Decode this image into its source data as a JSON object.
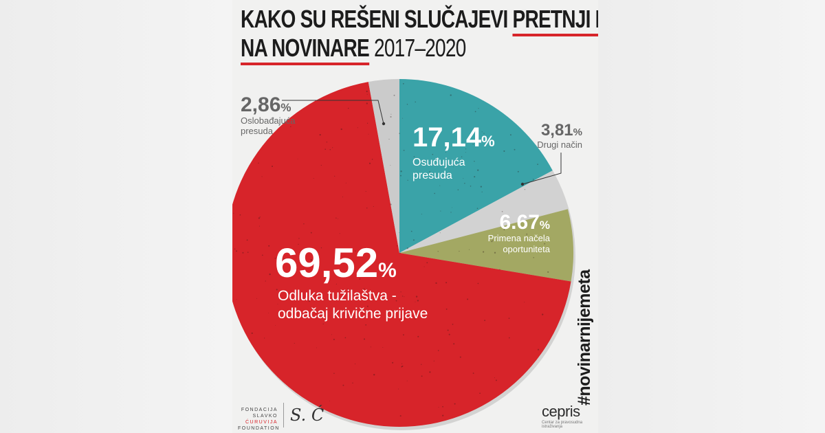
{
  "chart_data": {
    "type": "pie",
    "title_parts": [
      "KAKO SU REŠENI SLUČAJEVI ",
      "PRETNJI I NAPADA",
      "NA NOVINARE",
      " 2017–2020"
    ],
    "slices": [
      {
        "value": "17,14",
        "unit": "%",
        "label_lines": [
          "Osuđujuća",
          "presuda"
        ],
        "numeric": 17.14,
        "color": "#3aa3a8"
      },
      {
        "value": "3,81",
        "unit": "%",
        "label_lines": [
          "Drugi način"
        ],
        "numeric": 3.81,
        "color": "#d2d2d2"
      },
      {
        "value": "6.67",
        "unit": "%",
        "label_lines": [
          "Primena načela",
          "oportuniteta"
        ],
        "numeric": 6.67,
        "color": "#a3a863"
      },
      {
        "value": "69,52",
        "unit": "%",
        "label_lines": [
          "Odluka tužilaštva -",
          "odbačaj krivične prijave"
        ],
        "numeric": 69.52,
        "color": "#d7242a"
      },
      {
        "value": "2,86",
        "unit": "%",
        "label_lines": [
          "Oslobađajuća",
          "presuda"
        ],
        "numeric": 2.86,
        "color": "#cbcbcb"
      }
    ]
  },
  "hashtag": "#novinarnijemeta",
  "footer": {
    "foundation_lines": [
      "FONDACIJA",
      "SLAVKO",
      "ĆURUVIJA",
      "FOUNDATION"
    ],
    "signature": "S. Ć",
    "partner_logo": "cepris",
    "partner_sub": "Centar za pravosudna istraživanja"
  }
}
